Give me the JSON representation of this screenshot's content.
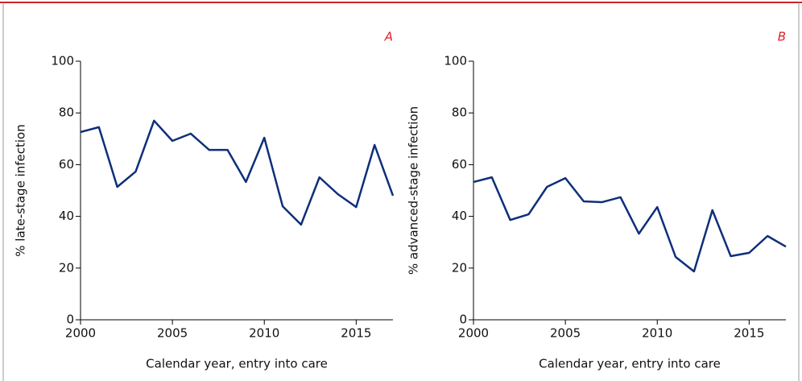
{
  "chart_data": [
    {
      "type": "line",
      "annotation": "A",
      "xlabel": "Calendar year, entry into care",
      "ylabel": "% late-stage infection",
      "x": [
        2000,
        2001,
        2002,
        2003,
        2004,
        2005,
        2006,
        2007,
        2008,
        2009,
        2010,
        2011,
        2012,
        2013,
        2014,
        2015,
        2016,
        2017
      ],
      "series": [
        {
          "color": "#0d2f7a",
          "values": [
            72.6,
            74.5,
            51.4,
            57.3,
            77,
            69.2,
            72,
            65.7,
            65.7,
            53.3,
            70.4,
            43.9,
            36.8,
            55.1,
            48.6,
            43.6,
            67.6,
            48
          ]
        }
      ],
      "xlim": [
        2000,
        2017
      ],
      "xticks": [
        2000,
        2005,
        2010,
        2015
      ],
      "ylim": [
        0,
        100
      ],
      "yticks": [
        0,
        20,
        40,
        60,
        80,
        100
      ]
    },
    {
      "type": "line",
      "annotation": "B",
      "xlabel": "Calendar year, entry into care",
      "ylabel": "% advanced-stage infection",
      "x": [
        2000,
        2001,
        2002,
        2003,
        2004,
        2005,
        2006,
        2007,
        2008,
        2009,
        2010,
        2011,
        2012,
        2013,
        2014,
        2015,
        2016,
        2017
      ],
      "series": [
        {
          "color": "#0d2f7a",
          "values": [
            53.3,
            55.1,
            38.6,
            40.8,
            51.4,
            54.8,
            45.8,
            45.5,
            47.4,
            33.3,
            43.6,
            24.3,
            18.7,
            42.4,
            24.6,
            25.9,
            32.4,
            28.3
          ]
        }
      ],
      "xlim": [
        2000,
        2017
      ],
      "xticks": [
        2000,
        2005,
        2010,
        2015
      ],
      "ylim": [
        0,
        100
      ],
      "yticks": [
        0,
        20,
        40,
        60,
        80,
        100
      ]
    }
  ]
}
